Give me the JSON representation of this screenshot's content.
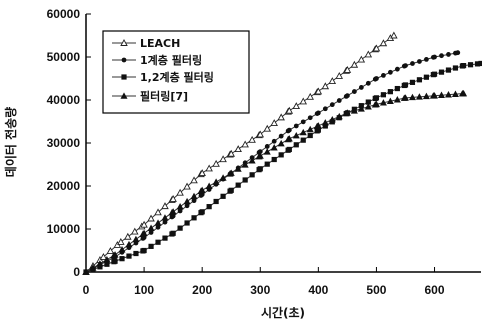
{
  "chart_data": {
    "type": "line",
    "xlabel": "시간(초)",
    "ylabel": "데이터 전송량",
    "xlim": [
      0,
      680
    ],
    "ylim": [
      0,
      60000
    ],
    "xticks": [
      0,
      100,
      200,
      300,
      400,
      500,
      600
    ],
    "yticks": [
      0,
      10000,
      20000,
      30000,
      40000,
      50000,
      60000
    ],
    "grid": false,
    "legend_position": "top-left",
    "series": [
      {
        "name": "LEACH",
        "marker": "open-triangle",
        "x": [
          0,
          30,
          60,
          100,
          150,
          200,
          250,
          300,
          350,
          400,
          450,
          500,
          530
        ],
        "y": [
          0,
          3500,
          7000,
          11000,
          17000,
          23000,
          27500,
          32000,
          37500,
          42000,
          47000,
          52000,
          55000
        ]
      },
      {
        "name": "1계층 필터링",
        "marker": "dot",
        "x": [
          0,
          50,
          100,
          150,
          200,
          250,
          300,
          350,
          400,
          450,
          500,
          550,
          600,
          640
        ],
        "y": [
          0,
          3500,
          8000,
          13000,
          18000,
          23000,
          28000,
          33000,
          37000,
          41000,
          45000,
          48000,
          50000,
          51000
        ]
      },
      {
        "name": "1,2계층 필터링",
        "marker": "filled-square",
        "x": [
          0,
          50,
          100,
          150,
          200,
          250,
          300,
          350,
          400,
          450,
          500,
          550,
          600,
          650,
          680
        ],
        "y": [
          0,
          2500,
          5000,
          9000,
          14000,
          19000,
          24000,
          28500,
          33000,
          37000,
          40500,
          43500,
          46000,
          48000,
          48500
        ]
      },
      {
        "name": "필터링[7]",
        "marker": "filled-triangle",
        "x": [
          0,
          50,
          100,
          150,
          200,
          250,
          300,
          350,
          400,
          450,
          500,
          550,
          600,
          650
        ],
        "y": [
          0,
          4000,
          9000,
          14000,
          19000,
          23000,
          27000,
          31000,
          34000,
          37000,
          39000,
          40500,
          41000,
          41500
        ]
      }
    ]
  }
}
